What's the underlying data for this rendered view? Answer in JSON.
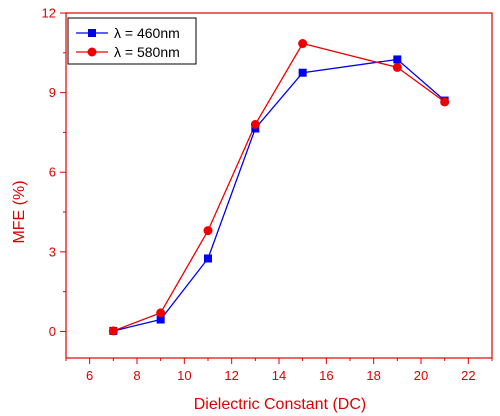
{
  "chart_data": {
    "type": "line",
    "title": "",
    "xlabel": "Dielectric Constant (DC)",
    "ylabel": "MFE (%)",
    "xlim": [
      5,
      23
    ],
    "ylim": [
      -1,
      12
    ],
    "x_ticks": [
      6,
      8,
      10,
      12,
      14,
      16,
      18,
      20,
      22
    ],
    "y_ticks": [
      0,
      3,
      6,
      9,
      12
    ],
    "x_tick_labels": [
      "6",
      "8",
      "10",
      "12",
      "14",
      "16",
      "18",
      "20",
      "22"
    ],
    "y_tick_labels": [
      "0",
      "3",
      "6",
      "9",
      "12"
    ],
    "grid": false,
    "legend_position": "top-left",
    "series": [
      {
        "name": "λ = 460nm",
        "color": "#0000ee",
        "marker": "square",
        "x": [
          7,
          9,
          11,
          13,
          15,
          19,
          21
        ],
        "y": [
          0.02,
          0.45,
          2.75,
          7.65,
          9.75,
          10.25,
          8.7
        ]
      },
      {
        "name": "λ = 580nm",
        "color": "#ee0000",
        "marker": "circle",
        "x": [
          7,
          9,
          11,
          13,
          15,
          19,
          21
        ],
        "y": [
          0.02,
          0.7,
          3.8,
          7.8,
          10.85,
          9.95,
          8.65
        ]
      }
    ],
    "axis_color": "#e00000"
  }
}
